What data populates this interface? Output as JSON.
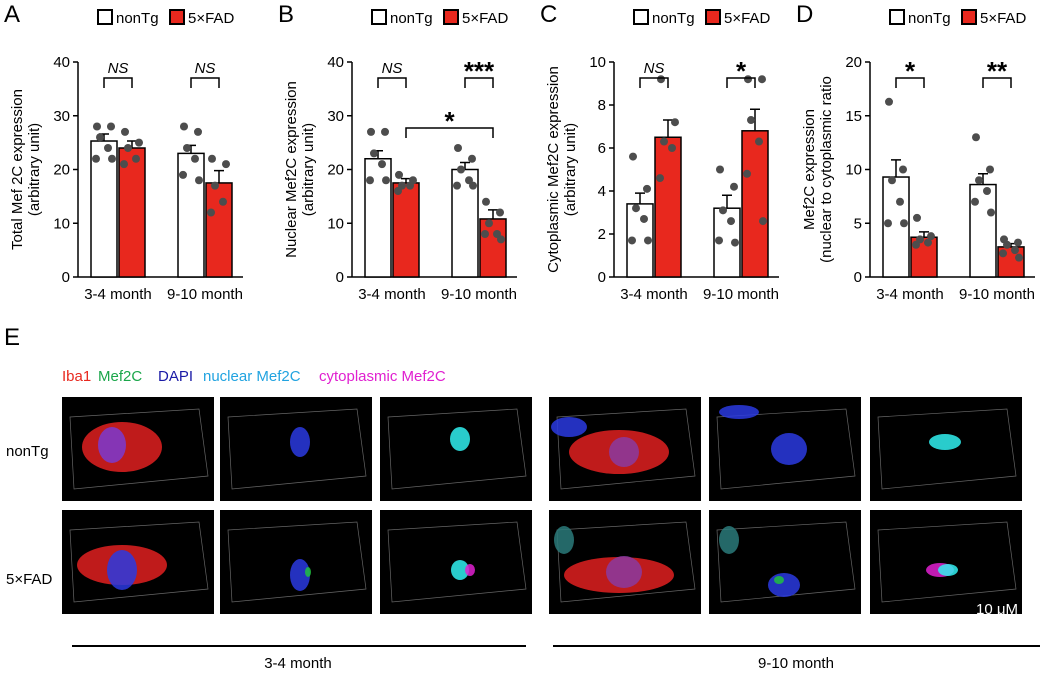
{
  "chart_data": [
    {
      "type": "bar",
      "panel": "A",
      "ylabel": [
        "Total Mef 2C expression",
        "(arbitrary unit)"
      ],
      "categories": [
        "3-4 month",
        "9-10 month"
      ],
      "ylim": [
        0,
        40
      ],
      "yticks": [
        0,
        10,
        20,
        30,
        40
      ],
      "series": [
        {
          "name": "nonTg",
          "color": "#ffffff",
          "values": [
            25.3,
            23.0
          ],
          "errors": [
            1.3,
            1.5
          ],
          "points": [
            [
              28,
              28,
              26,
              24,
              22,
              22
            ],
            [
              28,
              27,
              24,
              22,
              19,
              18
            ]
          ]
        },
        {
          "name": "5×FAD",
          "color": "#e8281e",
          "values": [
            24.0,
            17.5
          ],
          "errors": [
            1.3,
            2.3
          ],
          "points": [
            [
              27,
              25,
              24,
              22,
              21
            ],
            [
              22,
              21,
              17,
              14,
              12
            ]
          ]
        }
      ],
      "significance": [
        "NS",
        "NS"
      ]
    },
    {
      "type": "bar",
      "panel": "B",
      "ylabel": [
        "Nuclear Mef2C expression",
        "(arbitrary unit)"
      ],
      "categories": [
        "3-4 month",
        "9-10 month"
      ],
      "ylim": [
        0,
        40
      ],
      "yticks": [
        0,
        10,
        20,
        30,
        40
      ],
      "series": [
        {
          "name": "nonTg",
          "color": "#ffffff",
          "values": [
            22.0,
            20.0
          ],
          "errors": [
            1.5,
            1.3
          ],
          "points": [
            [
              27,
              27,
              23,
              21,
              18,
              18
            ],
            [
              24,
              22,
              20,
              18,
              17,
              17
            ]
          ]
        },
        {
          "name": "5×FAD",
          "color": "#e8281e",
          "values": [
            17.5,
            10.8
          ],
          "errors": [
            0.8,
            1.7
          ],
          "points": [
            [
              19,
              18,
              17,
              17,
              16
            ],
            [
              14,
              12,
              10,
              8,
              8,
              7
            ]
          ]
        }
      ],
      "significance": [
        "NS",
        "***"
      ],
      "cross_significance": "*"
    },
    {
      "type": "bar",
      "panel": "C",
      "ylabel": [
        "Cytoplasmic Mef2C expression",
        "(arbitrary unit)"
      ],
      "categories": [
        "3-4 month",
        "9-10 month"
      ],
      "ylim": [
        0,
        10
      ],
      "yticks": [
        0,
        2,
        4,
        6,
        8,
        10
      ],
      "series": [
        {
          "name": "nonTg",
          "color": "#ffffff",
          "values": [
            3.4,
            3.2
          ],
          "errors": [
            0.5,
            0.6
          ],
          "points": [
            [
              5.6,
              4.1,
              3.2,
              2.7,
              1.7,
              1.7
            ],
            [
              5.0,
              4.2,
              3.1,
              2.6,
              1.7,
              1.6
            ]
          ]
        },
        {
          "name": "5×FAD",
          "color": "#e8281e",
          "values": [
            6.5,
            6.8
          ],
          "errors": [
            0.8,
            1.0
          ],
          "points": [
            [
              9.2,
              7.2,
              6.3,
              6.0,
              4.6
            ],
            [
              9.2,
              9.2,
              7.3,
              6.3,
              4.8,
              2.6
            ]
          ]
        }
      ],
      "significance": [
        "NS",
        "*"
      ]
    },
    {
      "type": "bar",
      "panel": "D",
      "ylabel": [
        "Mef2C expression",
        "(nuclear to cytoplasmic ratio"
      ],
      "categories": [
        "3-4 month",
        "9-10 month"
      ],
      "ylim": [
        0,
        20
      ],
      "yticks": [
        0,
        5,
        10,
        15,
        20
      ],
      "series": [
        {
          "name": "nonTg",
          "color": "#ffffff",
          "values": [
            9.3,
            8.6
          ],
          "errors": [
            1.6,
            1.0
          ],
          "points": [
            [
              16.3,
              10,
              9,
              7,
              5,
              5
            ],
            [
              13,
              10,
              9,
              8,
              7,
              6
            ]
          ]
        },
        {
          "name": "5×FAD",
          "color": "#e8281e",
          "values": [
            3.7,
            2.8
          ],
          "errors": [
            0.5,
            0.3
          ],
          "points": [
            [
              5.5,
              3.8,
              3.5,
              3.2,
              3
            ],
            [
              3.5,
              3.2,
              3,
              2.5,
              2.2,
              1.8
            ]
          ]
        }
      ],
      "significance": [
        "*",
        "**"
      ]
    }
  ],
  "image_panel": {
    "panel": "E",
    "legend": [
      "Iba1",
      "Mef2C",
      "DAPI",
      "nuclear Mef2C",
      "cytoplasmic Mef2C"
    ],
    "rows": [
      "nonTg",
      "5×FAD"
    ],
    "groups": [
      "3-4 month",
      "9-10 month"
    ],
    "scale_bar": "10 μM"
  }
}
